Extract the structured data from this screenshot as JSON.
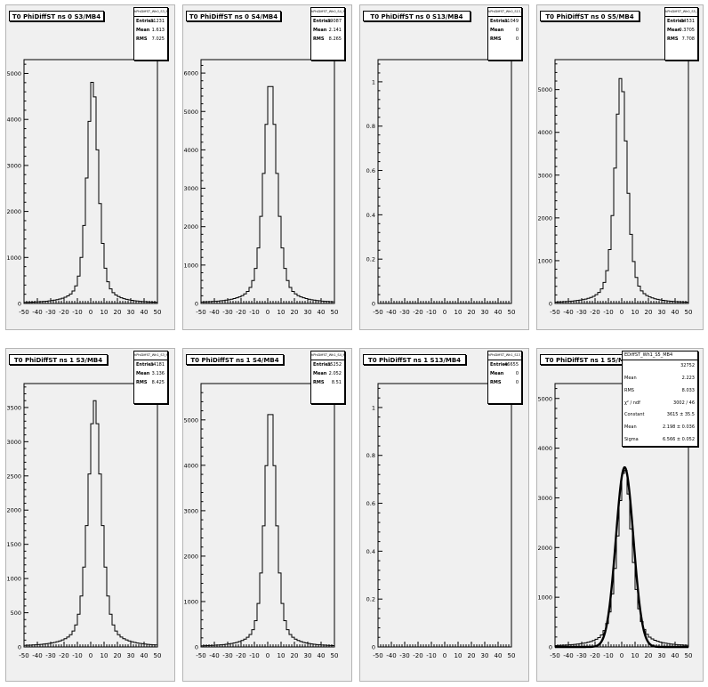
{
  "pads": [
    {
      "title": "T0 PhiDiffST ns 0 S3/MB4",
      "stats_name": "hPhiDiffST_Wh0_S3_MB4",
      "stats": [
        {
          "label": "Entries",
          "value": "31231"
        },
        {
          "label": "Mean",
          "value": "1.613"
        },
        {
          "label": "RMS",
          "value": "7.025"
        }
      ],
      "chart_data": {
        "type": "histogram",
        "xlim": [
          -50,
          50
        ],
        "ylim": [
          0,
          5300
        ],
        "xticks": [
          -50,
          -40,
          -30,
          -20,
          -10,
          0,
          10,
          20,
          30,
          40,
          50
        ],
        "yticks": [
          0,
          1000,
          2000,
          3000,
          4000,
          5000
        ],
        "ytick_labels": [
          "0",
          "1000",
          "2000",
          "3000",
          "4000",
          "5000"
        ],
        "shape": {
          "amp": 4850,
          "center": 1.5,
          "width": 4.5,
          "tail": 0.55
        }
      }
    },
    {
      "title": "T0 PhiDiffST ns 0 S4/MB4",
      "stats_name": "hPhiDiffST_Wh0_S4_MB4",
      "stats": [
        {
          "label": "Entries",
          "value": "39087"
        },
        {
          "label": "Mean",
          "value": "2.141"
        },
        {
          "label": "RMS",
          "value": "8.265"
        }
      ],
      "chart_data": {
        "type": "histogram",
        "xlim": [
          -50,
          50
        ],
        "ylim": [
          0,
          6350
        ],
        "xticks": [
          -50,
          -40,
          -30,
          -20,
          -10,
          0,
          10,
          20,
          30,
          40,
          50
        ],
        "yticks": [
          0,
          1000,
          2000,
          3000,
          4000,
          5000,
          6000
        ],
        "ytick_labels": [
          "0",
          "1000",
          "2000",
          "3000",
          "4000",
          "5000",
          "6000"
        ],
        "shape": {
          "amp": 5800,
          "center": 2,
          "width": 5.2,
          "tail": 0.55
        }
      }
    },
    {
      "title": "T0 PhiDiffST ns 0 S13/MB4",
      "stats_name": "hPhiDiffST_Wh0_S13_MB4",
      "stats": [
        {
          "label": "Entries",
          "value": "31049"
        },
        {
          "label": "Mean",
          "value": "0"
        },
        {
          "label": "RMS",
          "value": "0"
        }
      ],
      "chart_data": {
        "type": "histogram",
        "xlim": [
          -50,
          50
        ],
        "ylim": [
          0,
          1.1
        ],
        "xticks": [
          -50,
          -40,
          -30,
          -20,
          -10,
          0,
          10,
          20,
          30,
          40,
          50
        ],
        "yticks": [
          0,
          0.2,
          0.4,
          0.6,
          0.8,
          1
        ],
        "ytick_labels": [
          "0",
          "0.2",
          "0.4",
          "0.6",
          "0.8",
          "1"
        ],
        "shape": null
      }
    },
    {
      "title": "T0 PhiDiffST ns 0 S5/MB4",
      "stats_name": "hPhiDiffST_Wh0_S5_MB4",
      "stats": [
        {
          "label": "Entries",
          "value": "34531"
        },
        {
          "label": "Mean",
          "value": "-0.3705"
        },
        {
          "label": "RMS",
          "value": "7.708"
        }
      ],
      "chart_data": {
        "type": "histogram",
        "xlim": [
          -50,
          50
        ],
        "ylim": [
          0,
          5700
        ],
        "xticks": [
          -50,
          -40,
          -30,
          -20,
          -10,
          0,
          10,
          20,
          30,
          40,
          50
        ],
        "yticks": [
          0,
          1000,
          2000,
          3000,
          4000,
          5000
        ],
        "ytick_labels": [
          "0",
          "1000",
          "2000",
          "3000",
          "4000",
          "5000"
        ],
        "shape": {
          "amp": 5300,
          "center": -0.5,
          "width": 4.8,
          "tail": 0.55
        }
      }
    },
    {
      "title": "T0 PhiDiffST ns 1 S3/MB4",
      "stats_name": "hPhiDiffST_Wh1_S3_MB4",
      "stats": [
        {
          "label": "Entries",
          "value": "34181"
        },
        {
          "label": "Mean",
          "value": "3.136"
        },
        {
          "label": "RMS",
          "value": "8.425"
        }
      ],
      "chart_data": {
        "type": "histogram",
        "xlim": [
          -50,
          50
        ],
        "ylim": [
          0,
          3850
        ],
        "xticks": [
          -50,
          -40,
          -30,
          -20,
          -10,
          0,
          10,
          20,
          30,
          40,
          50
        ],
        "yticks": [
          0,
          500,
          1000,
          1500,
          2000,
          2500,
          3000,
          3500
        ],
        "ytick_labels": [
          "0",
          "500",
          "1000",
          "1500",
          "2000",
          "2500",
          "3000",
          "3500"
        ],
        "shape": {
          "amp": 3600,
          "center": 3,
          "width": 5.3,
          "tail": 0.55
        }
      }
    },
    {
      "title": "T0 PhiDiffST ns 1 S4/MB4",
      "stats_name": "hPhiDiffST_Wh1_S4_MB4",
      "stats": [
        {
          "label": "Entries",
          "value": "35252"
        },
        {
          "label": "Mean",
          "value": "2.052"
        },
        {
          "label": "RMS",
          "value": "8.51"
        }
      ],
      "chart_data": {
        "type": "histogram",
        "xlim": [
          -50,
          50
        ],
        "ylim": [
          0,
          5800
        ],
        "xticks": [
          -50,
          -40,
          -30,
          -20,
          -10,
          0,
          10,
          20,
          30,
          40,
          50
        ],
        "yticks": [
          0,
          1000,
          2000,
          3000,
          4000,
          5000
        ],
        "ytick_labels": [
          "0",
          "1000",
          "2000",
          "3000",
          "4000",
          "5000"
        ],
        "shape": {
          "amp": 5300,
          "center": 2,
          "width": 4.5,
          "tail": 0.55
        }
      }
    },
    {
      "title": "T0 PhiDiffST ns 1 S13/MB4",
      "stats_name": "hPhiDiffST_Wh1_S13_MB4",
      "stats": [
        {
          "label": "Entries",
          "value": "46655"
        },
        {
          "label": "Mean",
          "value": "0"
        },
        {
          "label": "RMS",
          "value": "0"
        }
      ],
      "chart_data": {
        "type": "histogram",
        "xlim": [
          -50,
          50
        ],
        "ylim": [
          0,
          1.1
        ],
        "xticks": [
          -50,
          -40,
          -30,
          -20,
          -10,
          0,
          10,
          20,
          30,
          40,
          50
        ],
        "yticks": [
          0,
          0.2,
          0.4,
          0.6,
          0.8,
          1
        ],
        "ytick_labels": [
          "0",
          "0.2",
          "0.4",
          "0.6",
          "0.8",
          "1"
        ],
        "shape": null
      }
    },
    {
      "title": "T0 PhiDiffST ns 1 S5/MB4",
      "stats_name": "hPhiDiffST_Wh1_S5_MB4",
      "stats_name_visible": "EDiffST_Wh1_S5_MB4",
      "stats": [
        {
          "label": "",
          "value": "32752"
        },
        {
          "label": "Mean",
          "value": "2.223"
        },
        {
          "label": "RMS",
          "value": "8.033"
        },
        {
          "label": "χ² / ndf",
          "value": "3002 / 46"
        },
        {
          "label": "Constant",
          "value": "3615 ±  35.5"
        },
        {
          "label": "Mean",
          "value": "2.198 ±  0.036"
        },
        {
          "label": "Sigma",
          "value": "6.566 ±  0.052"
        }
      ],
      "chart_data": {
        "type": "histogram",
        "xlim": [
          -50,
          50
        ],
        "ylim": [
          0,
          5300
        ],
        "xticks": [
          -50,
          -40,
          -30,
          -20,
          -10,
          0,
          10,
          20,
          30,
          40,
          50
        ],
        "yticks": [
          0,
          1000,
          2000,
          3000,
          4000,
          5000
        ],
        "ytick_labels": [
          "0",
          "1000",
          "2000",
          "3000",
          "4000",
          "5000"
        ],
        "shape": {
          "amp": 3600,
          "center": 2.2,
          "width": 5.8,
          "tail": 0.55
        },
        "fit": {
          "type": "gaus",
          "constant": 3615,
          "mean": 2.198,
          "sigma": 6.566
        }
      }
    }
  ]
}
